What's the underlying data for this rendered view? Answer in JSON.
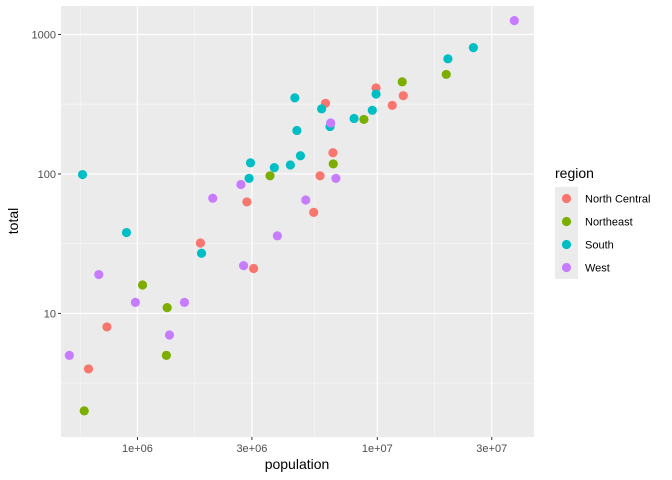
{
  "chart_data": {
    "type": "scatter",
    "xlabel": "population",
    "ylabel": "total",
    "x_scale": "log10",
    "y_scale": "log10",
    "xlim": [
      480000,
      45000000
    ],
    "ylim": [
      1.3,
      1600
    ],
    "x_ticks": [
      {
        "value": 1000000,
        "label": "1e+06"
      },
      {
        "value": 3000000,
        "label": "3e+06"
      },
      {
        "value": 10000000,
        "label": "1e+07"
      },
      {
        "value": 30000000,
        "label": "3e+07"
      }
    ],
    "y_ticks": [
      {
        "value": 10,
        "label": "10"
      },
      {
        "value": 100,
        "label": "100"
      },
      {
        "value": 1000,
        "label": "1000"
      }
    ],
    "grid": true,
    "legend": {
      "title": "region",
      "position": "right"
    },
    "series": [
      {
        "name": "North Central",
        "color": "#F8766D",
        "points": [
          {
            "x": 625000,
            "y": 4
          },
          {
            "x": 746000,
            "y": 8
          },
          {
            "x": 1830000,
            "y": 32
          },
          {
            "x": 2860000,
            "y": 63
          },
          {
            "x": 3050000,
            "y": 21
          },
          {
            "x": 5430000,
            "y": 53
          },
          {
            "x": 5770000,
            "y": 97
          },
          {
            "x": 6080000,
            "y": 321
          },
          {
            "x": 6530000,
            "y": 142
          },
          {
            "x": 9880000,
            "y": 413
          },
          {
            "x": 11540000,
            "y": 310
          },
          {
            "x": 12830000,
            "y": 364
          }
        ]
      },
      {
        "name": "Northeast",
        "color": "#7CAE00",
        "points": [
          {
            "x": 600000,
            "y": 2
          },
          {
            "x": 1050000,
            "y": 16
          },
          {
            "x": 1320000,
            "y": 5
          },
          {
            "x": 1330000,
            "y": 11
          },
          {
            "x": 3570000,
            "y": 97
          },
          {
            "x": 6550000,
            "y": 118
          },
          {
            "x": 8790000,
            "y": 246
          },
          {
            "x": 12700000,
            "y": 457
          },
          {
            "x": 19380000,
            "y": 517
          }
        ]
      },
      {
        "name": "South",
        "color": "#00BFC4",
        "points": [
          {
            "x": 590000,
            "y": 99
          },
          {
            "x": 900000,
            "y": 38
          },
          {
            "x": 1850000,
            "y": 27
          },
          {
            "x": 2920000,
            "y": 93
          },
          {
            "x": 2960000,
            "y": 120
          },
          {
            "x": 3720000,
            "y": 111
          },
          {
            "x": 4340000,
            "y": 116
          },
          {
            "x": 4530000,
            "y": 351
          },
          {
            "x": 4620000,
            "y": 205
          },
          {
            "x": 4780000,
            "y": 135
          },
          {
            "x": 5860000,
            "y": 293
          },
          {
            "x": 6350000,
            "y": 219
          },
          {
            "x": 8000000,
            "y": 250
          },
          {
            "x": 9530000,
            "y": 286
          },
          {
            "x": 9880000,
            "y": 374
          },
          {
            "x": 19690000,
            "y": 669
          },
          {
            "x": 25150000,
            "y": 805
          }
        ]
      },
      {
        "name": "West",
        "color": "#C77CFF",
        "points": [
          {
            "x": 520000,
            "y": 5
          },
          {
            "x": 690000,
            "y": 19
          },
          {
            "x": 980000,
            "y": 12
          },
          {
            "x": 1360000,
            "y": 7
          },
          {
            "x": 1570000,
            "y": 12
          },
          {
            "x": 2060000,
            "y": 67
          },
          {
            "x": 2700000,
            "y": 84
          },
          {
            "x": 2770000,
            "y": 22
          },
          {
            "x": 3830000,
            "y": 36
          },
          {
            "x": 5030000,
            "y": 65
          },
          {
            "x": 6390000,
            "y": 232
          },
          {
            "x": 6720000,
            "y": 93
          },
          {
            "x": 37250000,
            "y": 1257
          }
        ]
      }
    ]
  }
}
